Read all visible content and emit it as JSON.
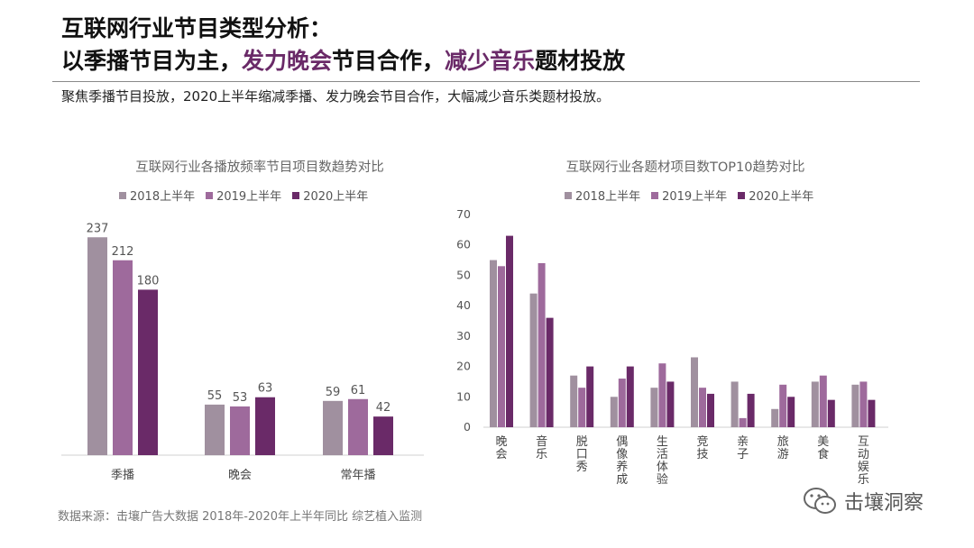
{
  "header": {
    "title_line1": "互联网行业节目类型分析：",
    "title_line2_a": "以季播节目为主，",
    "title_line2_b": "发力晚会",
    "title_line2_c": "节目合作，",
    "title_line2_d": "减少音乐",
    "title_line2_e": "题材投放",
    "subtitle": "聚焦季播节目投放，2020上半年缩减季播、发力晚会节目合作，大幅减少音乐类题材投放。"
  },
  "colors": {
    "s2018": "#a0909f",
    "s2019": "#9e6a9c",
    "s2020": "#6a2a68",
    "highlight": "#6a2a68"
  },
  "chart_data": [
    {
      "type": "bar",
      "title": "互联网行业各播放频率节目项目数趋势对比",
      "categories": [
        "季播",
        "晚会",
        "常年播"
      ],
      "series": [
        {
          "name": "2018上半年",
          "values": [
            237,
            55,
            59
          ]
        },
        {
          "name": "2019上半年",
          "values": [
            212,
            53,
            61
          ]
        },
        {
          "name": "2020上半年",
          "values": [
            180,
            63,
            42
          ]
        }
      ],
      "ylim": [
        0,
        250
      ],
      "data_labels": true,
      "legend": "top"
    },
    {
      "type": "bar",
      "title": "互联网行业各题材项目数TOP10趋势对比",
      "categories": [
        "晚会",
        "音乐",
        "脱口秀",
        "偶像养成",
        "生活体验",
        "竞技",
        "亲子",
        "旅游",
        "美食",
        "互动娱乐"
      ],
      "series": [
        {
          "name": "2018上半年",
          "values": [
            55,
            44,
            17,
            10,
            13,
            23,
            15,
            6,
            15,
            14
          ]
        },
        {
          "name": "2019上半年",
          "values": [
            53,
            54,
            13,
            16,
            21,
            13,
            3,
            14,
            17,
            15
          ]
        },
        {
          "name": "2020上半年",
          "values": [
            63,
            36,
            20,
            20,
            15,
            11,
            11,
            10,
            9,
            9
          ]
        }
      ],
      "ylim": [
        0,
        70
      ],
      "yticks": [
        0,
        10,
        20,
        30,
        40,
        50,
        60,
        70
      ],
      "legend": "top"
    }
  ],
  "footer": {
    "source": "数据来源：击壤广告大数据 2018年-2020年上半年同比 综艺植入监测",
    "brand": "击壤洞察",
    "brand_icon": "wechat-icon"
  }
}
